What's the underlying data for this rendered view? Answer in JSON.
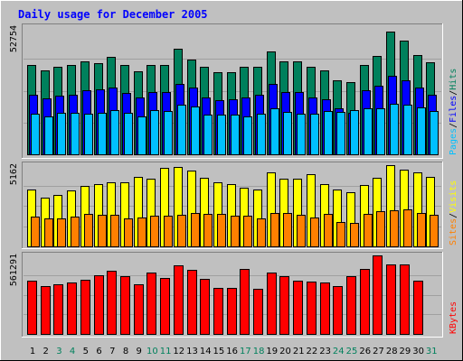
{
  "title": "Daily usage for December 2005",
  "colors": {
    "background": "#c0c0c0",
    "title": "#0000ff",
    "hits": "#00805c",
    "files": "#0000ff",
    "pages": "#00c0ff",
    "visits": "#ffff00",
    "sites": "#ff8000",
    "kbytes": "#ff0000",
    "weekday_label": "#000000",
    "weekend_label": "#00805c"
  },
  "chart_data": [
    {
      "type": "bar",
      "panel": "hits-files-pages",
      "categories": [
        "1",
        "2",
        "3",
        "4",
        "5",
        "6",
        "7",
        "8",
        "9",
        "10",
        "11",
        "12",
        "13",
        "14",
        "15",
        "16",
        "17",
        "18",
        "19",
        "20",
        "21",
        "22",
        "23",
        "24",
        "25",
        "26",
        "27",
        "28",
        "29",
        "30",
        "31"
      ],
      "weekend_days": [
        "3",
        "4",
        "10",
        "11",
        "17",
        "18",
        "24",
        "25",
        "31"
      ],
      "ymax_label": "52754",
      "legend": [
        "Pages",
        "/",
        "Files",
        "/",
        "Hits"
      ],
      "ylim": [
        0,
        52754
      ],
      "series": [
        {
          "name": "Hits",
          "values": [
            36900,
            34700,
            36300,
            37000,
            38600,
            37700,
            40400,
            37100,
            34400,
            37000,
            36900,
            43700,
            39200,
            36400,
            33900,
            34100,
            36200,
            36300,
            42600,
            38600,
            38600,
            36400,
            34700,
            30600,
            29800,
            37000,
            40800,
            50800,
            47000,
            41300,
            38300
          ]
        },
        {
          "name": "Files",
          "values": [
            24800,
            23200,
            24200,
            24700,
            26600,
            26800,
            27600,
            25600,
            23400,
            25800,
            25800,
            29300,
            27600,
            23600,
            22400,
            22700,
            23500,
            24600,
            29100,
            26000,
            25900,
            23700,
            22900,
            19200,
            17300,
            26600,
            28300,
            32500,
            30700,
            27800,
            24800
          ]
        },
        {
          "name": "Pages",
          "values": [
            16700,
            15600,
            17100,
            17300,
            16800,
            17100,
            18200,
            17100,
            15600,
            18400,
            18100,
            20500,
            19900,
            16300,
            16500,
            16600,
            15900,
            16700,
            18900,
            17400,
            16900,
            17000,
            18100,
            17400,
            18300,
            19000,
            18900,
            21000,
            20400,
            19500,
            17900
          ]
        }
      ]
    },
    {
      "type": "bar",
      "panel": "visits-sites",
      "categories": [
        "1",
        "2",
        "3",
        "4",
        "5",
        "6",
        "7",
        "8",
        "9",
        "10",
        "11",
        "12",
        "13",
        "14",
        "15",
        "16",
        "17",
        "18",
        "19",
        "20",
        "21",
        "22",
        "23",
        "24",
        "25",
        "26",
        "27",
        "28",
        "29",
        "30",
        "31"
      ],
      "ymax_label": "5162",
      "legend": [
        "Sites",
        "/",
        "Visits"
      ],
      "ylim": [
        0,
        5162
      ],
      "series": [
        {
          "name": "Visits",
          "values": [
            3600,
            3100,
            3250,
            3550,
            3850,
            3950,
            4100,
            4100,
            4400,
            4300,
            5000,
            5050,
            4800,
            4350,
            4100,
            3950,
            3700,
            3600,
            4700,
            4300,
            4300,
            4600,
            3950,
            3600,
            3450,
            3900,
            4350,
            5150,
            4900,
            4700,
            4400
          ]
        },
        {
          "name": "Sites",
          "values": [
            1900,
            1750,
            1750,
            1900,
            2050,
            2000,
            2000,
            1800,
            1850,
            1950,
            1950,
            2000,
            2150,
            2050,
            2050,
            1950,
            1950,
            1750,
            2150,
            2150,
            2000,
            1850,
            2050,
            1550,
            1500,
            2050,
            2250,
            2300,
            2350,
            2150,
            2000
          ]
        }
      ]
    },
    {
      "type": "bar",
      "panel": "kbytes",
      "categories": [
        "1",
        "2",
        "3",
        "4",
        "5",
        "6",
        "7",
        "8",
        "9",
        "10",
        "11",
        "12",
        "13",
        "14",
        "15",
        "16",
        "17",
        "18",
        "19",
        "20",
        "21",
        "22",
        "23",
        "24",
        "25",
        "26",
        "27",
        "28",
        "29",
        "30",
        "31"
      ],
      "ymax_label": "561291",
      "legend": [
        "KBytes"
      ],
      "ylim": [
        0,
        561291
      ],
      "series": [
        {
          "name": "KBytes",
          "values": [
            380000,
            340000,
            355000,
            370000,
            390000,
            420000,
            450000,
            415000,
            355000,
            440000,
            400000,
            490000,
            460000,
            395000,
            330000,
            330000,
            465000,
            320000,
            440000,
            415000,
            380000,
            375000,
            365000,
            345000,
            415000,
            465000,
            561291,
            500000,
            495000,
            380000,
            0
          ]
        }
      ]
    }
  ]
}
